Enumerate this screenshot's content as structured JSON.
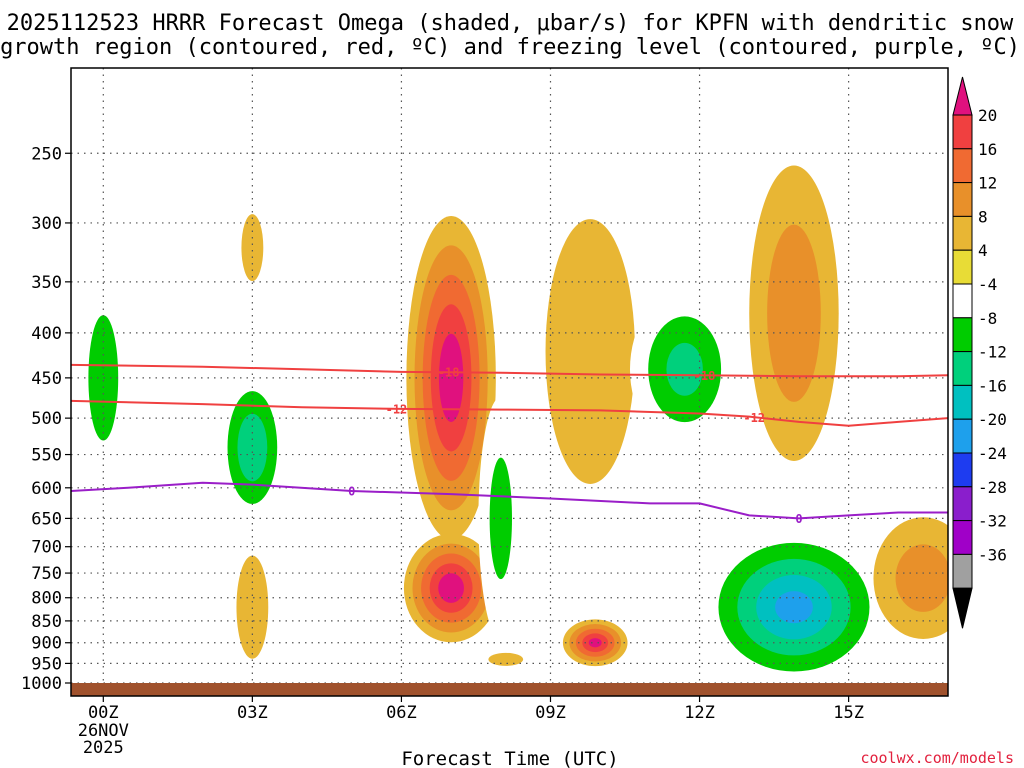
{
  "chart_data": {
    "type": "heatmap",
    "title_lines": [
      "2025112523 HRRR Forecast Omega (shaded, μbar/s) for KPFN with dendritic snow",
      "growth region (contoured, red, ºC) and freezing level (contoured, purple, ºC)"
    ],
    "xlabel": "Forecast Time (UTC)",
    "ylabel": "",
    "x_ticks": [
      {
        "hour": 0,
        "label": "00Z",
        "sub": [
          "26NOV",
          "2025"
        ]
      },
      {
        "hour": 3,
        "label": "03Z",
        "sub": []
      },
      {
        "hour": 6,
        "label": "06Z",
        "sub": []
      },
      {
        "hour": 9,
        "label": "09Z",
        "sub": []
      },
      {
        "hour": 12,
        "label": "12Z",
        "sub": []
      },
      {
        "hour": 15,
        "label": "15Z",
        "sub": []
      }
    ],
    "xlim": [
      -0.65,
      17.0
    ],
    "y_ticks": [
      250,
      300,
      350,
      400,
      450,
      500,
      550,
      600,
      650,
      700,
      750,
      800,
      850,
      900,
      950,
      1000
    ],
    "ylim": [
      1000,
      200
    ],
    "y_scale": "log-pressure",
    "colorbar": {
      "labels": [
        "20",
        "16",
        "12",
        "8",
        "4",
        "-4",
        "-8",
        "-12",
        "-16",
        "-20",
        "-24",
        "-28",
        "-32",
        "-36"
      ],
      "bounds": [
        20,
        16,
        12,
        8,
        4,
        -4,
        -8,
        -12,
        -16,
        -20,
        -24,
        -28,
        -32,
        -36
      ],
      "colors": [
        "#f04040",
        "#f06a32",
        "#e8902a",
        "#e8b634",
        "#e8dc36",
        "#ffffff",
        "#00cc00",
        "#00d07c",
        "#00c0c0",
        "#1ea0ec",
        "#1e3cf0",
        "#8a1ecc",
        "#a000c8",
        "#a0a0a0"
      ],
      "top_color": "#e0117e",
      "bottom_color": "#000000"
    },
    "omega_features": [
      {
        "x": 0.0,
        "p": 450,
        "rx": 0.5,
        "rp": 120,
        "value": -10
      },
      {
        "x": 0.0,
        "p": 800,
        "rx": 0.18,
        "rp": 28,
        "value": -6
      },
      {
        "x": 2.0,
        "p": 790,
        "rx": 0.22,
        "rp": 40,
        "value": -6
      },
      {
        "x": 3.0,
        "p": 540,
        "rx": 0.7,
        "rp": 110,
        "value": -14
      },
      {
        "x": 3.0,
        "p": 320,
        "rx": 0.22,
        "rp": 28,
        "value": 5
      },
      {
        "x": 3.0,
        "p": 820,
        "rx": 0.32,
        "rp": 110,
        "value": 5
      },
      {
        "x": 7.0,
        "p": 450,
        "rx": 0.9,
        "rp": 180,
        "value": 22
      },
      {
        "x": 7.0,
        "p": 780,
        "rx": 0.95,
        "rp": 110,
        "value": 22
      },
      {
        "x": 8.0,
        "p": 650,
        "rx": 0.45,
        "rp": 200,
        "value": -8
      },
      {
        "x": 8.2,
        "p": 360,
        "rx": 0.28,
        "rp": 120,
        "value": -6
      },
      {
        "x": 8.1,
        "p": 940,
        "rx": 0.35,
        "rp": 16,
        "value": 5
      },
      {
        "x": 9.9,
        "p": 900,
        "rx": 0.65,
        "rp": 55,
        "value": 20
      },
      {
        "x": 9.8,
        "p": 420,
        "rx": 0.9,
        "rp": 140,
        "value": 6
      },
      {
        "x": 11.7,
        "p": 440,
        "rx": 1.1,
        "rp": 90,
        "value": -12
      },
      {
        "x": 13.9,
        "p": 380,
        "rx": 0.9,
        "rp": 140,
        "value": 10
      },
      {
        "x": 13.9,
        "p": 820,
        "rx": 1.9,
        "rp": 170,
        "value": -20
      },
      {
        "x": 16.5,
        "p": 760,
        "rx": 1.0,
        "rp": 120,
        "value": 9
      },
      {
        "x": 16.4,
        "p": 270,
        "rx": 0.7,
        "rp": 50,
        "value": -6
      },
      {
        "x": 14.0,
        "p": 215,
        "rx": 0.5,
        "rp": 12,
        "value": -6
      }
    ],
    "contours": [
      {
        "name": "dgz-upper",
        "level": -18,
        "label": "-18",
        "color": "#f04040",
        "x": [
          -0.65,
          2,
          4,
          6,
          8,
          10,
          12,
          14,
          16,
          17
        ],
        "p": [
          435,
          437,
          440,
          443,
          444,
          446,
          447,
          448,
          448,
          447
        ]
      },
      {
        "name": "dgz-lower",
        "level": -12,
        "label": "-12",
        "color": "#f04040",
        "x": [
          -0.65,
          2,
          4,
          6,
          8,
          10,
          12,
          13,
          14,
          15,
          16,
          17
        ],
        "p": [
          478,
          482,
          486,
          488,
          489,
          490,
          494,
          498,
          505,
          510,
          505,
          500
        ]
      },
      {
        "name": "freezing-level",
        "level": 0,
        "label": "0",
        "color": "#9a1ec8",
        "x": [
          -0.65,
          0.5,
          2,
          3,
          5,
          7,
          9,
          11,
          12,
          13,
          14,
          15,
          16,
          17
        ],
        "p": [
          605,
          600,
          592,
          595,
          605,
          610,
          617,
          625,
          625,
          645,
          650,
          645,
          640,
          640
        ]
      }
    ],
    "contour_labels": [
      {
        "text": "-18",
        "x": 6.95,
        "p": 443,
        "contour": "dgz-upper"
      },
      {
        "text": "-18",
        "x": 12.1,
        "p": 447,
        "contour": "dgz-upper"
      },
      {
        "text": "-12",
        "x": 5.9,
        "p": 488,
        "contour": "dgz-lower"
      },
      {
        "text": "-12",
        "x": 13.1,
        "p": 499,
        "contour": "dgz-lower"
      },
      {
        "text": "0",
        "x": 5.0,
        "p": 605,
        "contour": "freezing-level"
      },
      {
        "text": "0",
        "x": 14.0,
        "p": 650,
        "contour": "freezing-level"
      }
    ],
    "ground": {
      "color": "#a0522d"
    }
  },
  "watermark": "coolwx.com/models"
}
